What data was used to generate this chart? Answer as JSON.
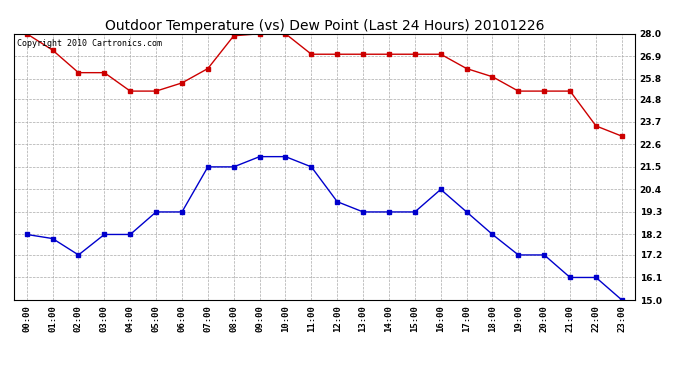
{
  "title": "Outdoor Temperature (vs) Dew Point (Last 24 Hours) 20101226",
  "copyright_text": "Copyright 2010 Cartronics.com",
  "hours": [
    "00:00",
    "01:00",
    "02:00",
    "03:00",
    "04:00",
    "05:00",
    "06:00",
    "07:00",
    "08:00",
    "09:00",
    "10:00",
    "11:00",
    "12:00",
    "13:00",
    "14:00",
    "15:00",
    "16:00",
    "17:00",
    "18:00",
    "19:00",
    "20:00",
    "21:00",
    "22:00",
    "23:00"
  ],
  "temp_data": [
    28.0,
    27.2,
    26.1,
    26.1,
    25.2,
    25.2,
    25.6,
    26.3,
    27.9,
    28.0,
    28.0,
    27.0,
    27.0,
    27.0,
    27.0,
    27.0,
    27.0,
    26.3,
    25.9,
    25.2,
    25.2,
    25.2,
    23.5,
    23.0
  ],
  "dew_data": [
    18.2,
    18.0,
    17.2,
    18.2,
    18.2,
    19.3,
    19.3,
    21.5,
    21.5,
    22.0,
    22.0,
    21.5,
    19.8,
    19.3,
    19.3,
    19.3,
    20.4,
    19.3,
    18.2,
    17.2,
    17.2,
    16.1,
    16.1,
    15.0
  ],
  "temp_color": "#cc0000",
  "dew_color": "#0000cc",
  "ylim_min": 15.0,
  "ylim_max": 28.0,
  "yticks": [
    15.0,
    16.1,
    17.2,
    18.2,
    19.3,
    20.4,
    21.5,
    22.6,
    23.7,
    24.8,
    25.8,
    26.9,
    28.0
  ],
  "background_color": "#ffffff",
  "plot_bg_color": "#ffffff",
  "grid_color": "#aaaaaa",
  "title_fontsize": 10,
  "tick_fontsize": 6.5,
  "copyright_fontsize": 6
}
